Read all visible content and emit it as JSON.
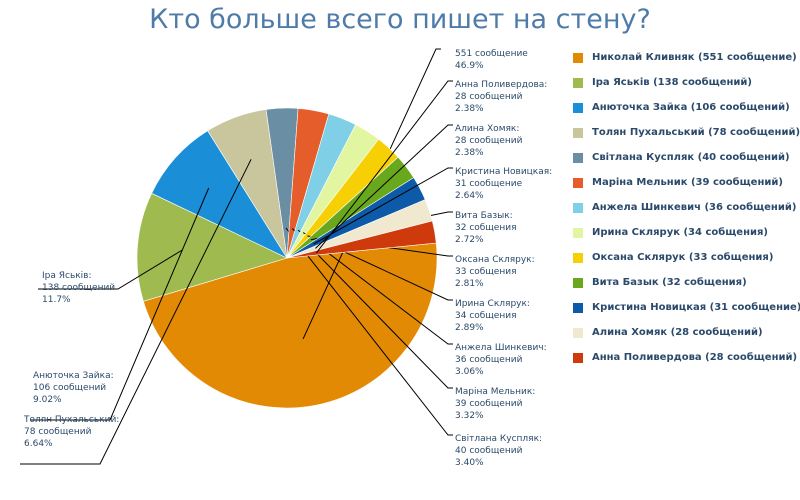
{
  "title": "Кто больше всего пишет на стену?",
  "chart_data": {
    "type": "pie",
    "title": "Кто больше всего пишет на стену?",
    "legend_position": "right",
    "slices": [
      {
        "name": "Николай Кливняк",
        "value": 551,
        "percent": "46.9%",
        "color": "#e38a05",
        "legend": "Николай Кливняк (551 сообщение)",
        "label": [
          "551 сообщение",
          "46.9%"
        ]
      },
      {
        "name": "Іра Яськів",
        "value": 138,
        "percent": "11.7%",
        "color": "#9fba4e",
        "legend": "Іра Яськів (138 сообщений)",
        "label": [
          "Іра Яськів:",
          "138 сообщений",
          "11.7%"
        ]
      },
      {
        "name": "Анюточка Зайка",
        "value": 106,
        "percent": "9.02%",
        "color": "#1a8fd8",
        "legend": "Анюточка Зайка (106 сообщений)",
        "label": [
          "Анюточка Зайка:",
          "106 сообщений",
          "9.02%"
        ]
      },
      {
        "name": "Толян Пухальський",
        "value": 78,
        "percent": "6.64%",
        "color": "#c9c59d",
        "legend": "Толян Пухальський (78 сообщений)",
        "label": [
          "Толян Пухальський:",
          "78 сообщений",
          "6.64%"
        ]
      },
      {
        "name": "Світлана Куспляк",
        "value": 40,
        "percent": "3.40%",
        "color": "#6a8ea3",
        "legend": "Світлана Куспляк (40 сообщений)",
        "label": [
          "Світлана Куспляк:",
          "40 сообщений",
          "3.40%"
        ]
      },
      {
        "name": "Маріна Мельник",
        "value": 39,
        "percent": "3.32%",
        "color": "#e45d2a",
        "legend": "Маріна Мельник (39 сообщений)",
        "label": [
          "Маріна Мельник:",
          "39 сообщений",
          "3.32%"
        ]
      },
      {
        "name": "Анжела Шинкевич",
        "value": 36,
        "percent": "3.06%",
        "color": "#7fd0e6",
        "legend": "Анжела Шинкевич (36 сообщений)",
        "label": [
          "Анжела Шинкевич:",
          "36 сообщений",
          "3.06%"
        ]
      },
      {
        "name": "Ирина Склярук",
        "value": 34,
        "percent": "2.89%",
        "color": "#e2f5a0",
        "legend": "Ирина Склярук (34 собщения)",
        "label": [
          "Ирина Склярук:",
          "34 собщения",
          "2.89%"
        ]
      },
      {
        "name": "Оксана Склярук",
        "value": 33,
        "percent": "2.81%",
        "color": "#f6cf04",
        "legend": "Оксана Склярук (33 собщения)",
        "label": [
          "Оксана Склярук:",
          "33 собщения",
          "2.81%"
        ]
      },
      {
        "name": "Вита Базык",
        "value": 32,
        "percent": "2.72%",
        "color": "#69a81d",
        "legend": "Вита Базык (32 собщения)",
        "label": [
          "Вита Базык:",
          "32 собщения",
          "2.72%"
        ]
      },
      {
        "name": "Кристина Новицкая",
        "value": 31,
        "percent": "2.64%",
        "color": "#0d5aa8",
        "legend": "Кристина Новицкая (31 сообщение)",
        "label": [
          "Кристина Новицкая:",
          "31 сообщение",
          "2.64%"
        ]
      },
      {
        "name": "Алина Хомяк",
        "value": 28,
        "percent": "2.38%",
        "color": "#f0e8cf",
        "legend": "Алина Хомяк (28 сообщений)",
        "label": [
          "Алина Хомяк:",
          "28 сообщений",
          "2.38%"
        ]
      },
      {
        "name": "Анна Поливердова",
        "value": 28,
        "percent": "2.38%",
        "color": "#cf3a0d",
        "legend": "Анна Поливердова (28 сообщений)",
        "label": [
          "Анна Поливердова:",
          "28 сообщений",
          "2.38%"
        ]
      }
    ]
  }
}
